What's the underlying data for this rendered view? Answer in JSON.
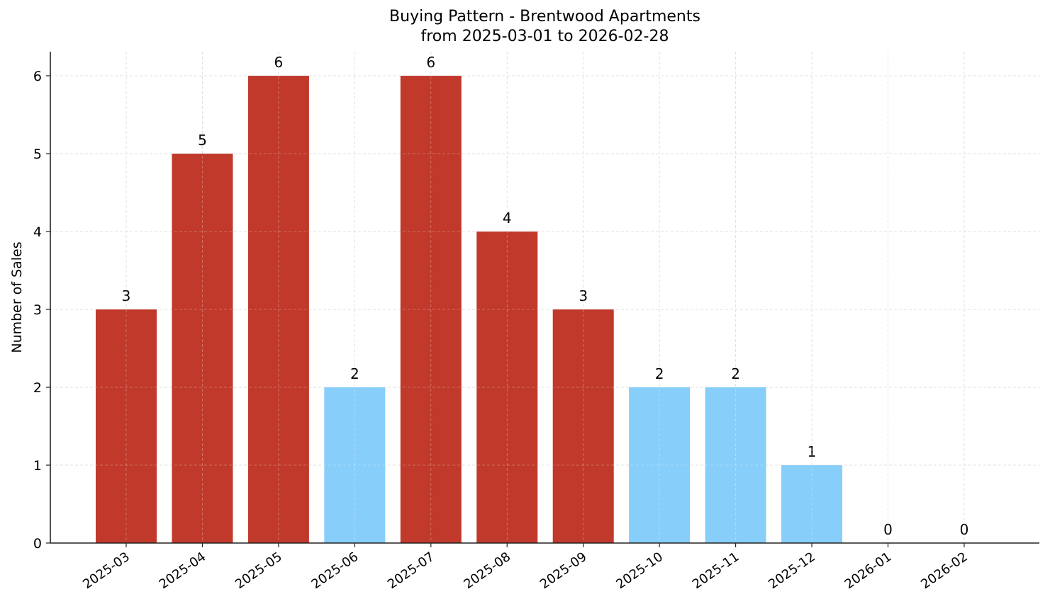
{
  "chart_data": {
    "type": "bar",
    "title": "Buying Pattern - Brentwood Apartments",
    "subtitle": "from 2025-03-01 to 2026-02-28",
    "xlabel": "",
    "ylabel": "Number of Sales",
    "categories": [
      "2025-03",
      "2025-04",
      "2025-05",
      "2025-06",
      "2025-07",
      "2025-08",
      "2025-09",
      "2025-10",
      "2025-11",
      "2025-12",
      "2026-01",
      "2026-02"
    ],
    "values": [
      3,
      5,
      6,
      2,
      6,
      4,
      3,
      2,
      2,
      1,
      0,
      0
    ],
    "bar_colors": [
      "#c0392b",
      "#c0392b",
      "#c0392b",
      "#87cefa",
      "#c0392b",
      "#c0392b",
      "#c0392b",
      "#87cefa",
      "#87cefa",
      "#87cefa",
      "#87cefa",
      "#87cefa"
    ],
    "ylim": [
      0,
      6.3
    ],
    "yticks": [
      0,
      1,
      2,
      3,
      4,
      5,
      6
    ],
    "grid": true,
    "data_labels": true,
    "colors": {
      "high": "#c0392b",
      "low": "#87cefa"
    }
  }
}
